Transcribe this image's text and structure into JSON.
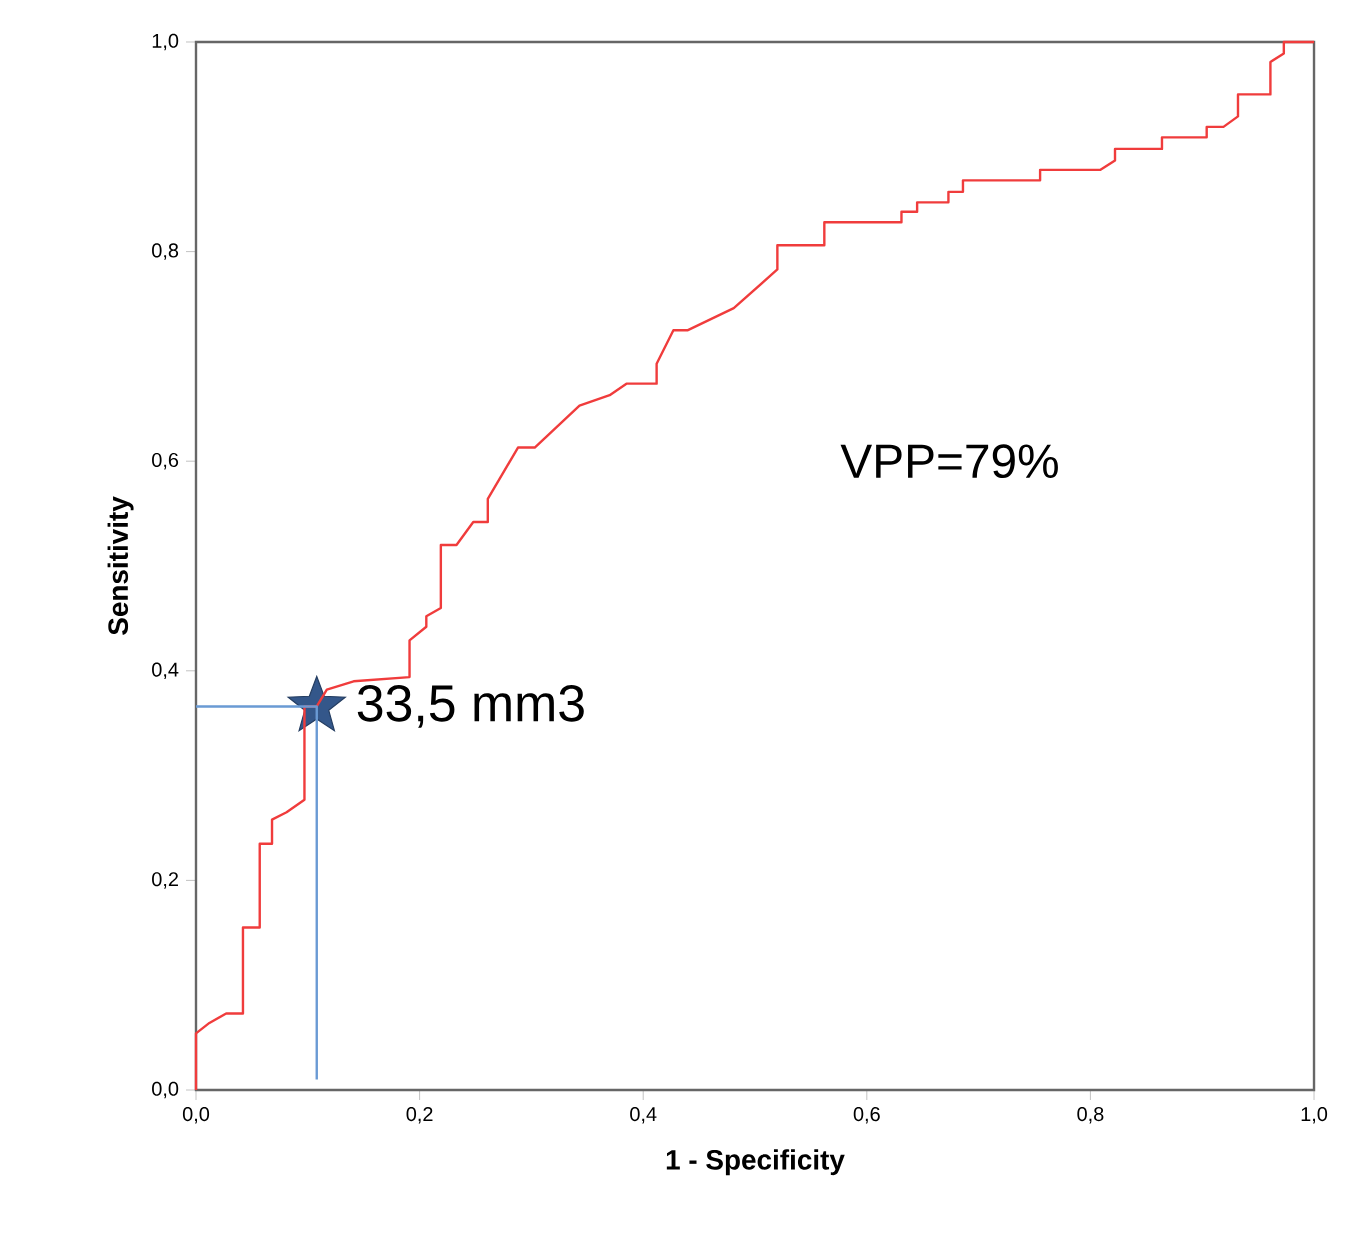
{
  "chart_data": {
    "type": "line",
    "xlabel": "1 - Specificity",
    "ylabel": "Sensitivity",
    "xlim": [
      0,
      1
    ],
    "ylim": [
      0,
      1
    ],
    "xticks": [
      {
        "value": 0,
        "label": "0,0"
      },
      {
        "value": 0.2,
        "label": "0,2"
      },
      {
        "value": 0.4,
        "label": "0,4"
      },
      {
        "value": 0.6,
        "label": "0,6"
      },
      {
        "value": 0.8,
        "label": "0,8"
      },
      {
        "value": 1,
        "label": "1,0"
      }
    ],
    "yticks": [
      {
        "value": 0,
        "label": "0,0"
      },
      {
        "value": 0.2,
        "label": "0,2"
      },
      {
        "value": 0.4,
        "label": "0,4"
      },
      {
        "value": 0.6,
        "label": "0,6"
      },
      {
        "value": 0.8,
        "label": "0,8"
      },
      {
        "value": 1,
        "label": "1,0"
      }
    ],
    "series": [
      {
        "type": "scatter",
        "color": "#34578a",
        "marker": "star",
        "x": [
          0.108
        ],
        "values": [
          0.366
        ]
      },
      {
        "color": "#f03c3c",
        "line_style": "solid",
        "marker": "none",
        "x": [
          0,
          0,
          0.012,
          0.027,
          0.042,
          0.042,
          0.057,
          0.057,
          0.068,
          0.068,
          0.081,
          0.097,
          0.097,
          0.108,
          0.117,
          0.141,
          0.191,
          0.191,
          0.206,
          0.206,
          0.219,
          0.219,
          0.233,
          0.248,
          0.261,
          0.261,
          0.288,
          0.303,
          0.343,
          0.37,
          0.385,
          0.412,
          0.412,
          0.427,
          0.44,
          0.481,
          0.52,
          0.52,
          0.562,
          0.562,
          0.631,
          0.631,
          0.645,
          0.645,
          0.673,
          0.673,
          0.686,
          0.686,
          0.755,
          0.755,
          0.809,
          0.822,
          0.822,
          0.864,
          0.864,
          0.904,
          0.904,
          0.919,
          0.932,
          0.932,
          0.961,
          0.961,
          0.973,
          0.973,
          1
        ],
        "values": [
          0,
          0.054,
          0.064,
          0.073,
          0.073,
          0.155,
          0.155,
          0.235,
          0.235,
          0.258,
          0.265,
          0.277,
          0.366,
          0.366,
          0.382,
          0.39,
          0.394,
          0.429,
          0.442,
          0.452,
          0.46,
          0.52,
          0.52,
          0.542,
          0.542,
          0.564,
          0.613,
          0.613,
          0.653,
          0.663,
          0.674,
          0.674,
          0.693,
          0.725,
          0.725,
          0.746,
          0.783,
          0.806,
          0.806,
          0.828,
          0.828,
          0.838,
          0.838,
          0.847,
          0.847,
          0.857,
          0.857,
          0.868,
          0.868,
          0.878,
          0.878,
          0.887,
          0.898,
          0.898,
          0.909,
          0.909,
          0.919,
          0.919,
          0.929,
          0.95,
          0.95,
          0.981,
          0.989,
          1,
          1
        ]
      },
      {
        "type": "line",
        "color": "#6a9ad4",
        "line_style": "solid",
        "marker": "none",
        "x": [
          0,
          0.108,
          0.108
        ],
        "values": [
          0.366,
          0.366,
          0.01
        ]
      }
    ],
    "annotations": [
      {
        "text": "33,5 mm3",
        "x": 0.108,
        "y": 0.366
      },
      "VPP=79%"
    ]
  }
}
